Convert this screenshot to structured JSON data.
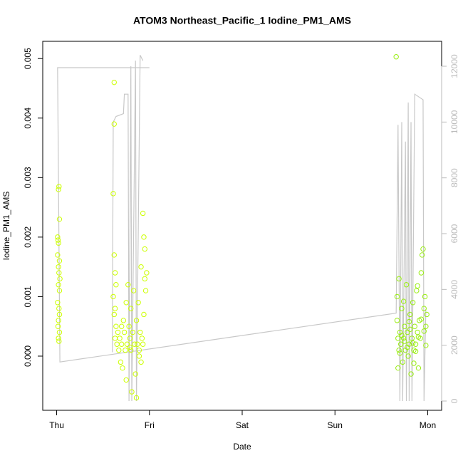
{
  "chart_data": {
    "type": "scatter",
    "title": "ATOM3 Northeast_Pacific_1 Iodine_PM1_AMS",
    "xlabel": "Date",
    "ylabel": "Iodine_PM1_AMS",
    "xlim": [
      -0.15,
      4.15
    ],
    "xticks": [
      {
        "value": 0,
        "label": "Thu"
      },
      {
        "value": 1,
        "label": "Fri"
      },
      {
        "value": 2,
        "label": "Sat"
      },
      {
        "value": 3,
        "label": "Sun"
      },
      {
        "value": 4,
        "label": "Mon"
      }
    ],
    "ylim": [
      -0.00091,
      0.00529
    ],
    "yticks": [
      {
        "value": 0,
        "label": "0.000"
      },
      {
        "value": 0.001,
        "label": "0.001"
      },
      {
        "value": 0.002,
        "label": "0.002"
      },
      {
        "value": 0.003,
        "label": "0.003"
      },
      {
        "value": 0.004,
        "label": "0.004"
      },
      {
        "value": 0.005,
        "label": "0.005"
      }
    ],
    "y2lim": [
      -332,
      12894
    ],
    "y2ticks": [
      0,
      2000,
      4000,
      6000,
      8000,
      10000,
      12000
    ],
    "y2color": "#bbbbbb",
    "series": [
      {
        "color": "#ccff00",
        "x": [
          0.02,
          0.025,
          0.03,
          0.01,
          0.015,
          0.02,
          0.01,
          0.03,
          0.02,
          0.025,
          0.035,
          0.02,
          0.03,
          0.01,
          0.025,
          0.03,
          0.02,
          0.015,
          0.03,
          0.02,
          0.025,
          0.62,
          0.62,
          0.61,
          0.62,
          0.63,
          0.64,
          0.61,
          0.63,
          0.62,
          0.64,
          0.63,
          0.65,
          0.66,
          0.67,
          0.68,
          0.69,
          0.7,
          0.7,
          0.71,
          0.72,
          0.73,
          0.74,
          0.75,
          0.75,
          0.76,
          0.77,
          0.78,
          0.79,
          0.8,
          0.8,
          0.81,
          0.82,
          0.83,
          0.84,
          0.85,
          0.86,
          0.87,
          0.88,
          0.89,
          0.9,
          0.91,
          0.92,
          0.93,
          0.94,
          0.95,
          0.95,
          0.96,
          0.97,
          0.93,
          0.94,
          0.86,
          0.89,
          0.91,
          0.79
        ],
        "values": [
          0.0028,
          0.00285,
          0.0023,
          0.002,
          0.00195,
          0.0019,
          0.0017,
          0.0016,
          0.0015,
          0.0014,
          0.0013,
          0.0012,
          0.0011,
          0.0009,
          0.0008,
          0.0007,
          0.0006,
          0.0005,
          0.0004,
          0.0003,
          0.00025,
          0.0046,
          0.0039,
          0.00273,
          0.0017,
          0.0014,
          0.0012,
          0.001,
          0.0008,
          0.0007,
          0.0005,
          0.0003,
          0.0002,
          0.0004,
          0.0001,
          0.0003,
          -0.0001,
          0.0005,
          0.0002,
          -0.0002,
          0.0006,
          0.0004,
          0.0001,
          -0.0004,
          0.0009,
          0.0002,
          0.0012,
          0.0005,
          0.0003,
          0.0001,
          0.0008,
          -0.0006,
          0.0004,
          0.0011,
          0.0002,
          -0.0003,
          0.0006,
          0.0002,
          0.0009,
          0.0001,
          0.0004,
          0.0015,
          0.0003,
          0.0024,
          0.002,
          0.0018,
          0.0013,
          0.0011,
          0.0014,
          0.0002,
          0.0007,
          -0.0007,
          0,
          -0.0001,
          0.00015
        ]
      },
      {
        "color": "#99ee11",
        "x": [
          3.66,
          3.67,
          3.67,
          3.68,
          3.68,
          3.69,
          3.7,
          3.71,
          3.72,
          3.73,
          3.74,
          3.75,
          3.76,
          3.77,
          3.78,
          3.79,
          3.8,
          3.81,
          3.82,
          3.83,
          3.84,
          3.85,
          3.86,
          3.87,
          3.88,
          3.89,
          3.9,
          3.91,
          3.92,
          3.93,
          3.94,
          3.95,
          3.96,
          3.97,
          3.98,
          3.99,
          3.7,
          3.72,
          3.75,
          3.78,
          3.81,
          3.84,
          3.87,
          3.9,
          3.93,
          3.96,
          3.98,
          3.69,
          3.74,
          3.8,
          3.85,
          3.89
        ],
        "values": [
          0.00503,
          0.001,
          0.0006,
          0.0003,
          -0.0002,
          0.0001,
          0.0004,
          0.0002,
          0.0008,
          -0.0001,
          0.0003,
          0.0005,
          0.0001,
          0.0012,
          0.0004,
          0,
          0.0002,
          0.0007,
          -0.0003,
          0.0003,
          0.0009,
          0.0001,
          0.0005,
          0.0002,
          0.0011,
          0.0004,
          -0.0002,
          0.0006,
          0.0003,
          0.0014,
          0.0017,
          0.0018,
          0.0008,
          0.001,
          0.0005,
          0.0007,
          5e-05,
          0.00035,
          0.00025,
          0.00015,
          0.00045,
          0.00022,
          8e-05,
          0.00032,
          0.00062,
          0.00042,
          0.00018,
          0.0013,
          0.00092,
          0.00058,
          -0.00012,
          0.00118
        ]
      },
      {
        "type": "line",
        "axis": "y2",
        "color": "#c8c8c8",
        "x": [
          1.0,
          0.01,
          0.035,
          3.66,
          3.68,
          3.7,
          3.72,
          3.73,
          3.76,
          3.77,
          3.79,
          3.8,
          3.82,
          3.83,
          3.86,
          3.95,
          3.96,
          3.98,
          null,
          0.6,
          0.61,
          0.64,
          0.72,
          0.73,
          0.77,
          0.78,
          0.8,
          0.81,
          0.85,
          0.86,
          0.9,
          0.93
        ],
        "values": [
          11950,
          11950,
          1400,
          3150,
          9900,
          0,
          10000,
          0,
          9300,
          0,
          10700,
          0,
          10000,
          0,
          11000,
          10800,
          0,
          3300,
          null,
          1750,
          10000,
          10200,
          10300,
          11000,
          11000,
          0,
          12000,
          0,
          12200,
          0,
          12400,
          12200
        ]
      }
    ]
  }
}
